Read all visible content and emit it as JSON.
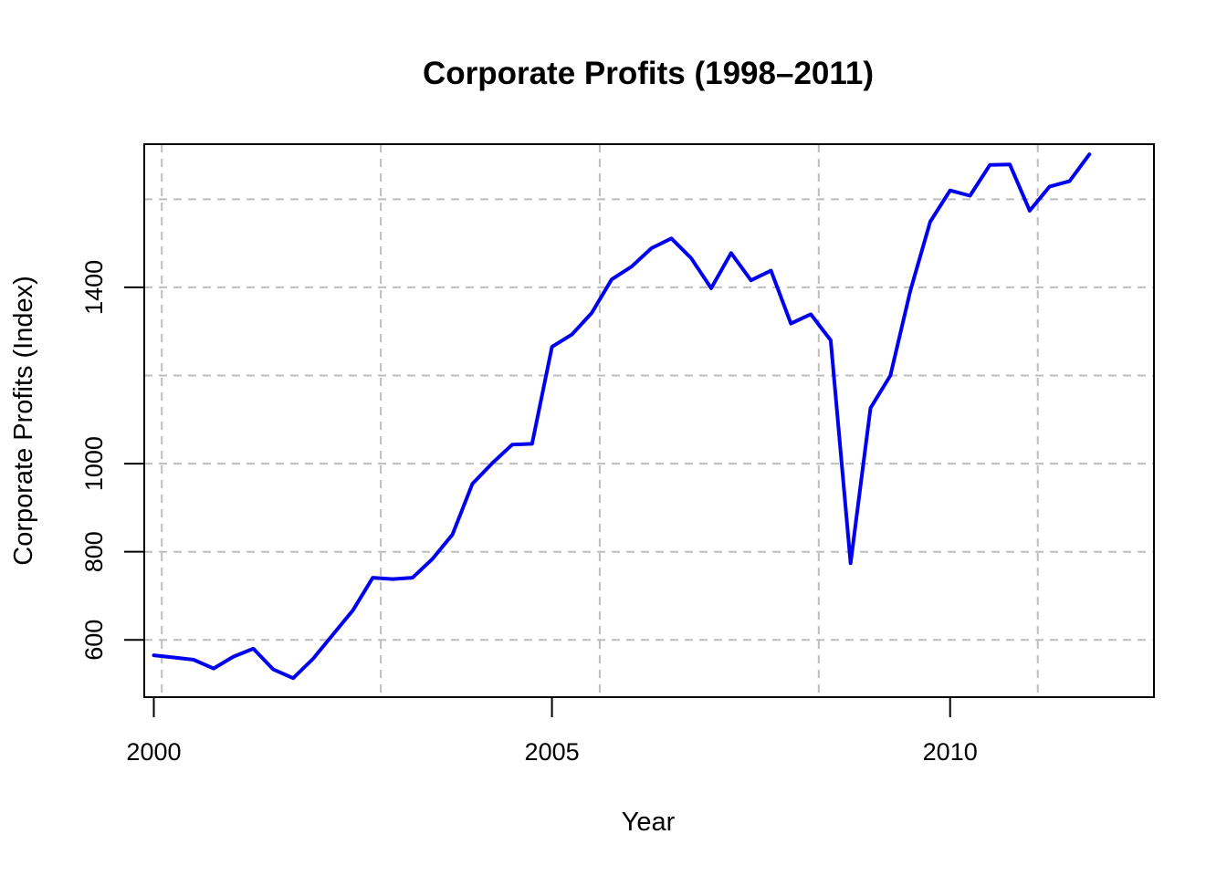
{
  "chart_data": {
    "type": "line",
    "title": "Corporate Profits (1998–2011)",
    "xlabel": "Year",
    "ylabel": "Corporate Profits (Index)",
    "xlim": [
      1999.88,
      2012.56
    ],
    "ylim": [
      470,
      1725
    ],
    "xticks": [
      2000,
      2005,
      2010
    ],
    "yticks": [
      600,
      800,
      1000,
      1400
    ],
    "x_grid": [
      2000.1,
      2002.85,
      2005.6,
      2008.35,
      2011.1
    ],
    "y_grid": [
      600,
      800,
      1000,
      1200,
      1400,
      1600
    ],
    "grid": true,
    "line_color": "#0000ee",
    "series": [
      {
        "x": [
          2000.0,
          2000.25,
          2000.5,
          2000.75,
          2001.0,
          2001.25,
          2001.5,
          2001.75,
          2002.0,
          2002.25,
          2002.5,
          2002.75,
          2003.0,
          2003.25,
          2003.5,
          2003.75,
          2004.0,
          2004.25,
          2004.5,
          2004.75,
          2005.0,
          2005.25,
          2005.5,
          2005.75,
          2006.0,
          2006.25,
          2006.5,
          2006.75,
          2007.0,
          2007.25,
          2007.5,
          2007.75,
          2008.0,
          2008.25,
          2008.5,
          2008.75,
          2009.0,
          2009.25,
          2009.5,
          2009.75,
          2010.0,
          2010.25,
          2010.5,
          2010.75,
          2011.0,
          2011.25,
          2011.5,
          2011.75
        ],
        "values": [
          565,
          560,
          555,
          535,
          562,
          580,
          533,
          513,
          557,
          612,
          667,
          741,
          738,
          741,
          784,
          839,
          954,
          1001,
          1043,
          1045,
          1265,
          1293,
          1342,
          1418,
          1447,
          1489,
          1511,
          1466,
          1398,
          1478,
          1416,
          1438,
          1318,
          1339,
          1280,
          774,
          1126,
          1200,
          1392,
          1549,
          1620,
          1608,
          1678,
          1679,
          1574,
          1629,
          1641,
          1702
        ]
      }
    ]
  }
}
